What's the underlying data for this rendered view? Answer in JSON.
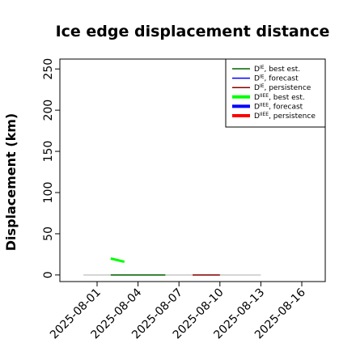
{
  "chart_data": {
    "type": "line",
    "title": "Ice edge displacement distance",
    "ylabel": "Displacement (km)",
    "xlabel": "",
    "ylim": [
      -8,
      262
    ],
    "y_ticks": [
      0,
      50,
      100,
      150,
      200,
      250
    ],
    "x_ticks": [
      "2025-08-01",
      "2025-08-04",
      "2025-08-07",
      "2025-08-10",
      "2025-08-13",
      "2025-08-16"
    ],
    "x_tick_colors": [
      "#000000",
      "#000000",
      "#228b22",
      "#000000",
      "#000000",
      "#000000"
    ],
    "grid": false,
    "legend_position": "top-right",
    "series": [
      {
        "name": "D^IE, best est.",
        "color": "#006400",
        "x": [
          "2025-08-02",
          "2025-08-06"
        ],
        "y": [
          0,
          0
        ],
        "width": "thin"
      },
      {
        "name": "D^IE, forecast",
        "color": "#0000ff",
        "x": [],
        "y": [],
        "width": "thin"
      },
      {
        "name": "D^IE, persistence",
        "color": "#8b0000",
        "x": [
          "2025-08-08",
          "2025-08-10"
        ],
        "y": [
          0,
          0
        ],
        "width": "thin"
      },
      {
        "name": "D^IIEE, best est.",
        "color": "#00ff00",
        "x": [
          "2025-08-02",
          "2025-08-03"
        ],
        "y": [
          20,
          16
        ],
        "width": "thick"
      },
      {
        "name": "D^IIEE, forecast",
        "color": "#0000ff",
        "x": [],
        "y": [],
        "width": "thick"
      },
      {
        "name": "D^IIEE, persistence",
        "color": "#ff0000",
        "x": [],
        "y": [],
        "width": "thick"
      }
    ],
    "background_line": {
      "color": "#c8c8c8",
      "x": [
        "2025-07-31",
        "2025-08-13"
      ],
      "y": [
        0,
        0
      ]
    }
  }
}
